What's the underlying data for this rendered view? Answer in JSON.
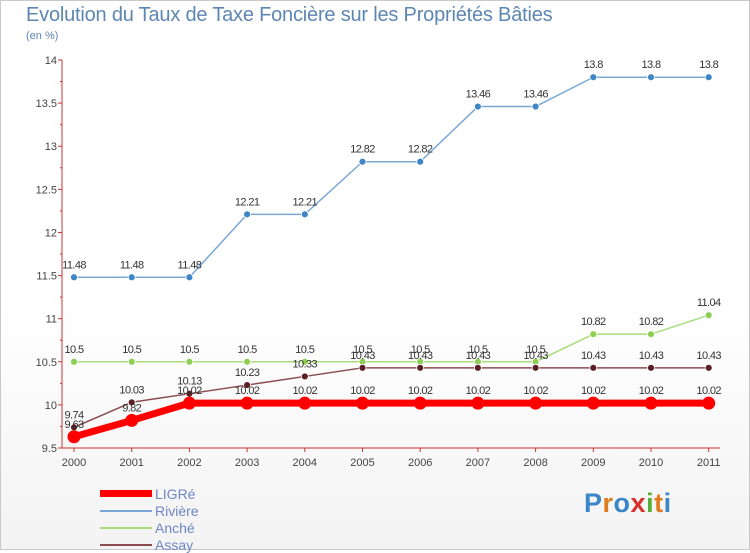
{
  "header": {
    "title": "Evolution du Taux de Taxe Foncière sur les Propriétés Bâties",
    "subtitle": "(en %)"
  },
  "logo": {
    "text": "Proxiti",
    "letter_colors": [
      "#3a86c8",
      "#e07b1f",
      "#3a86c8",
      "#d8322a",
      "#57b03a",
      "#e07b1f",
      "#3a86c8"
    ]
  },
  "chart_data": {
    "type": "line",
    "title": "Evolution du Taux de Taxe Foncière sur les Propriétés Bâties",
    "subtitle": "(en %)",
    "x": [
      "2000",
      "2001",
      "2002",
      "2003",
      "2004",
      "2005",
      "2006",
      "2007",
      "2008",
      "2009",
      "2010",
      "2011"
    ],
    "ylim": [
      9.5,
      14
    ],
    "yticks": [
      "9.5",
      "10",
      "10.5",
      "11",
      "11.5",
      "12",
      "12.5",
      "13",
      "13.5",
      "14"
    ],
    "grid": false,
    "legend_position": "bottom-left",
    "series": [
      {
        "name": "LIGRé",
        "color": "#ff0000",
        "values": [
          9.63,
          9.82,
          10.02,
          10.02,
          10.02,
          10.02,
          10.02,
          10.02,
          10.02,
          10.02,
          10.02,
          10.02
        ],
        "labels": [
          "9.63",
          "9.82",
          "10.02",
          "10.02",
          "10.02",
          "10.02",
          "10.02",
          "10.02",
          "10.02",
          "10.02",
          "10.02",
          "10.02"
        ]
      },
      {
        "name": "Rivière",
        "color": "#7aa7d6",
        "marker": "#3f86c6",
        "values": [
          11.48,
          11.48,
          11.48,
          12.21,
          12.21,
          12.82,
          12.82,
          13.46,
          13.46,
          13.8,
          13.8,
          13.8
        ],
        "labels": [
          "11.48",
          "11.48",
          "11.48",
          "12.21",
          "12.21",
          "12.82",
          "12.82",
          "13.46",
          "13.46",
          "13.8",
          "13.8",
          "13.8"
        ]
      },
      {
        "name": "Anché",
        "color": "#a8dc7c",
        "marker": "#8ccf52",
        "values": [
          10.5,
          10.5,
          10.5,
          10.5,
          10.5,
          10.5,
          10.5,
          10.5,
          10.5,
          10.82,
          10.82,
          11.04
        ],
        "labels": [
          "10.5",
          "10.5",
          "10.5",
          "10.5",
          "10.5",
          "10.5",
          "10.5",
          "10.5",
          "10.5",
          "10.82",
          "10.82",
          "11.04"
        ]
      },
      {
        "name": "Assay",
        "color": "#8a4a50",
        "marker": "#5a1e24",
        "values": [
          9.74,
          10.03,
          10.13,
          10.23,
          10.33,
          10.43,
          10.43,
          10.43,
          10.43,
          10.43,
          10.43,
          10.43
        ],
        "labels": [
          "9.74",
          "10.03",
          "10.13",
          "10.23",
          "10.33",
          "10.43",
          "10.43",
          "10.43",
          "10.43",
          "10.43",
          "10.43",
          "10.43"
        ]
      }
    ]
  }
}
